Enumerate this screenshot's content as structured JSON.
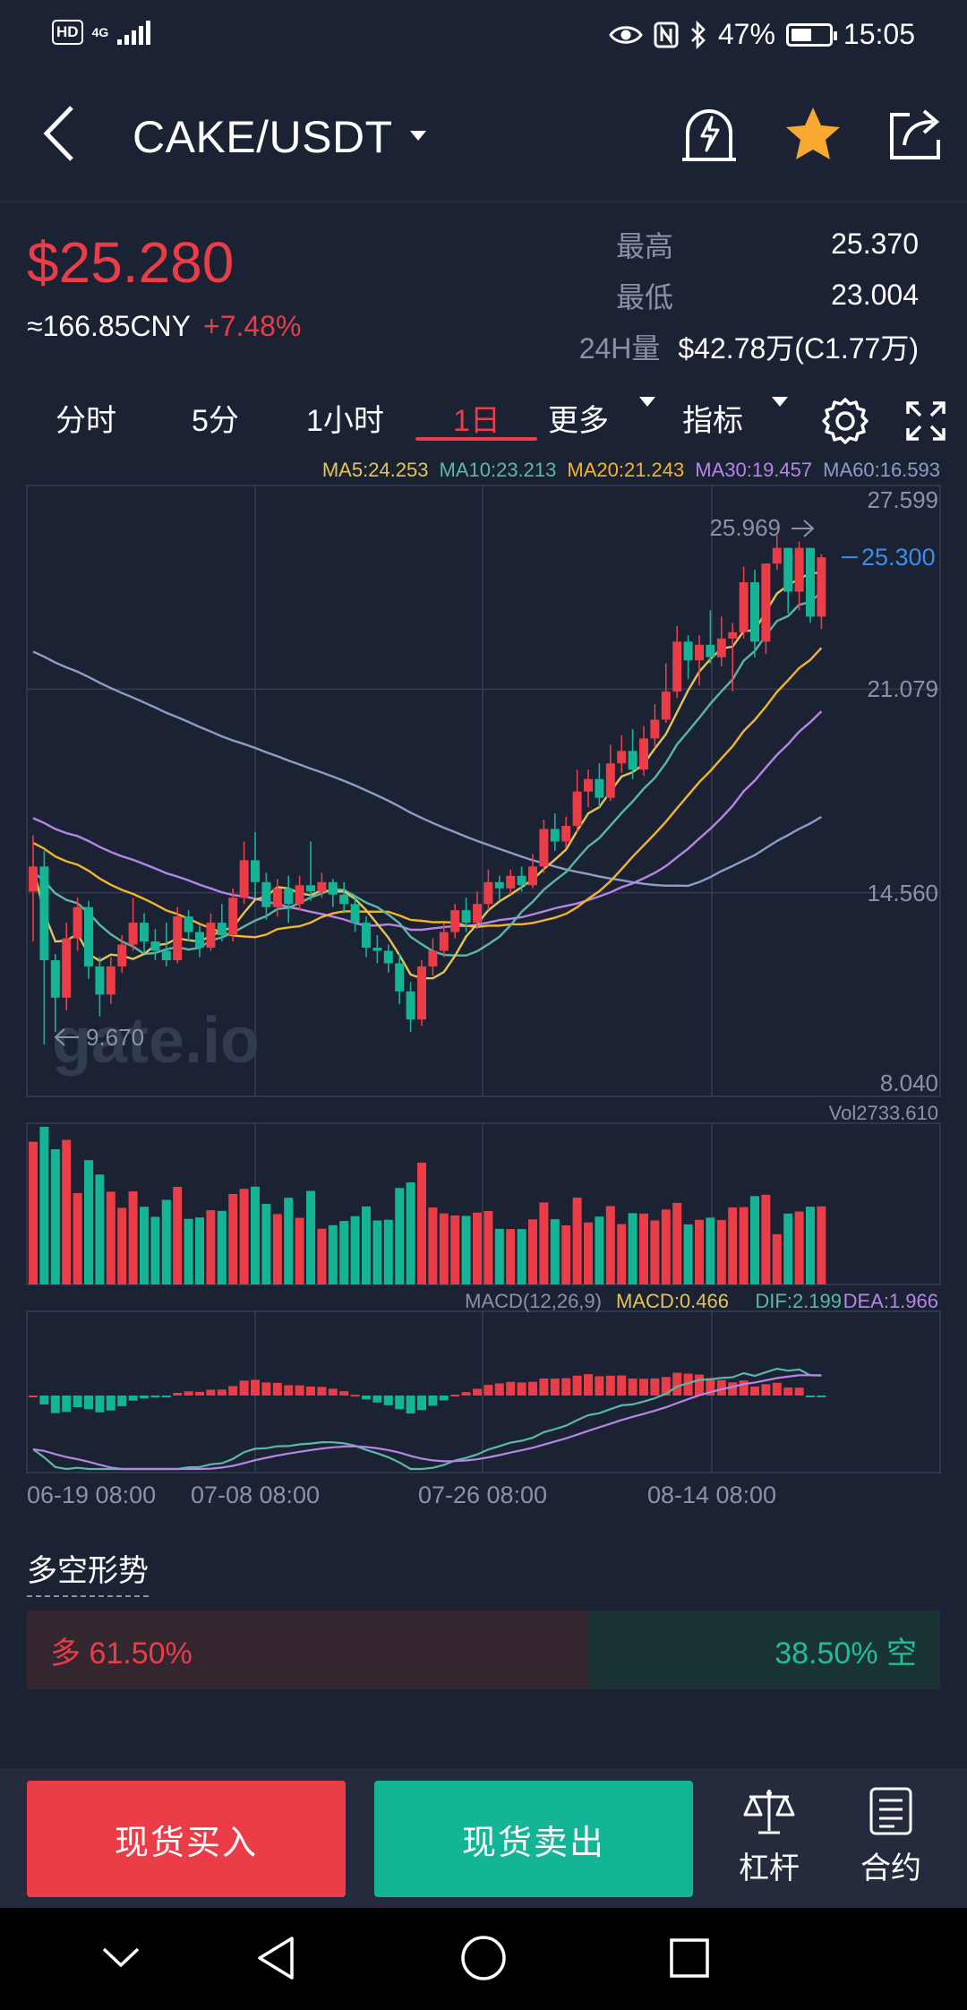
{
  "status_bar": {
    "hd": "HD",
    "network": "4G",
    "battery": "47%",
    "time": "15:05"
  },
  "header": {
    "pair": "CAKE/USDT"
  },
  "ticker": {
    "price": "$25.280",
    "cny": "≈166.85CNY",
    "change": "+7.48%",
    "high_label": "最高",
    "high": "25.370",
    "low_label": "最低",
    "low": "23.004",
    "vol_label": "24H量",
    "vol": "$42.78万(C1.77万)"
  },
  "tabs": [
    "分时",
    "5分",
    "1小时",
    "1日",
    "更多",
    "指标"
  ],
  "active_tab": "1日",
  "ma_legend": [
    {
      "text": "MA5:24.253",
      "color": "#e2c458"
    },
    {
      "text": "MA10:23.213",
      "color": "#5cb8a6"
    },
    {
      "text": "MA20:21.243",
      "color": "#f3b52c"
    },
    {
      "text": "MA30:19.457",
      "color": "#b785e6"
    },
    {
      "text": "MA60:16.593",
      "color": "#8f9cc8"
    }
  ],
  "chart_data": {
    "type": "candlestick",
    "y_axis_labels": [
      "27.599",
      "21.079",
      "14.560",
      "8.040"
    ],
    "ylim": [
      8.04,
      27.599
    ],
    "current_price_label": "25.300",
    "max_label": "25.969",
    "min_label": "9.670",
    "x_tick_labels": [
      "06-19 08:00",
      "07-08 08:00",
      "07-26 08:00",
      "08-14 08:00"
    ],
    "watermark": "gate.io",
    "candles": [
      [
        14.6,
        15.4,
        16.4,
        13.0
      ],
      [
        15.4,
        12.4,
        15.9,
        9.7
      ],
      [
        12.4,
        11.2,
        12.6,
        10.1
      ],
      [
        11.2,
        13.1,
        13.6,
        10.8
      ],
      [
        13.1,
        14.1,
        14.4,
        12.7
      ],
      [
        14.1,
        12.2,
        14.3,
        11.8
      ],
      [
        12.2,
        11.3,
        12.5,
        10.6
      ],
      [
        11.3,
        12.2,
        12.5,
        11.0
      ],
      [
        12.2,
        12.9,
        13.2,
        12.0
      ],
      [
        12.9,
        13.6,
        14.4,
        12.7
      ],
      [
        13.6,
        13.0,
        13.9,
        12.6
      ],
      [
        13.0,
        12.7,
        13.4,
        12.4
      ],
      [
        12.7,
        12.4,
        13.6,
        12.2
      ],
      [
        12.4,
        13.8,
        14.1,
        12.3
      ],
      [
        13.8,
        13.3,
        14.0,
        13.0
      ],
      [
        13.3,
        12.8,
        13.5,
        12.5
      ],
      [
        12.8,
        13.6,
        13.9,
        12.7
      ],
      [
        13.6,
        13.2,
        14.2,
        13.0
      ],
      [
        13.2,
        14.4,
        14.7,
        13.0
      ],
      [
        14.4,
        15.6,
        16.2,
        14.2
      ],
      [
        15.6,
        14.9,
        16.5,
        14.4
      ],
      [
        14.9,
        14.1,
        15.2,
        13.7
      ],
      [
        14.1,
        14.7,
        15.0,
        13.8
      ],
      [
        14.7,
        14.2,
        15.1,
        13.6
      ],
      [
        14.2,
        14.8,
        15.1,
        14.0
      ],
      [
        14.8,
        14.6,
        16.2,
        14.3
      ],
      [
        14.6,
        14.9,
        15.2,
        14.4
      ],
      [
        14.9,
        14.5,
        15.0,
        14.1
      ],
      [
        14.5,
        14.2,
        14.9,
        13.9
      ],
      [
        14.2,
        13.6,
        14.4,
        13.3
      ],
      [
        13.6,
        12.8,
        13.8,
        12.5
      ],
      [
        12.8,
        12.7,
        13.2,
        12.3
      ],
      [
        12.7,
        12.3,
        12.9,
        12.0
      ],
      [
        12.3,
        11.4,
        12.6,
        11.0
      ],
      [
        11.4,
        10.5,
        11.7,
        10.1
      ],
      [
        10.5,
        12.2,
        12.4,
        10.3
      ],
      [
        12.2,
        12.7,
        13.1,
        11.9
      ],
      [
        12.7,
        13.3,
        13.6,
        12.5
      ],
      [
        13.3,
        14.0,
        14.2,
        13.1
      ],
      [
        14.0,
        13.6,
        14.4,
        13.3
      ],
      [
        13.6,
        14.2,
        14.6,
        13.4
      ],
      [
        14.2,
        14.9,
        15.3,
        14.0
      ],
      [
        14.9,
        14.7,
        15.1,
        14.3
      ],
      [
        14.7,
        15.1,
        15.3,
        14.5
      ],
      [
        15.1,
        14.8,
        15.4,
        14.6
      ],
      [
        14.8,
        15.4,
        15.8,
        14.7
      ],
      [
        15.4,
        16.6,
        16.9,
        15.2
      ],
      [
        16.6,
        16.2,
        17.1,
        15.9
      ],
      [
        16.2,
        16.7,
        17.0,
        16.0
      ],
      [
        16.7,
        17.8,
        18.5,
        16.5
      ],
      [
        17.8,
        18.2,
        18.5,
        17.3
      ],
      [
        18.2,
        17.6,
        18.7,
        17.3
      ],
      [
        17.6,
        18.7,
        19.3,
        17.5
      ],
      [
        18.7,
        19.1,
        19.6,
        18.4
      ],
      [
        19.1,
        18.5,
        19.8,
        18.2
      ],
      [
        18.5,
        19.5,
        19.9,
        18.3
      ],
      [
        19.5,
        20.1,
        20.6,
        19.2
      ],
      [
        20.1,
        21.0,
        21.9,
        20.0
      ],
      [
        21.0,
        22.6,
        23.1,
        20.8
      ],
      [
        22.6,
        22.0,
        22.8,
        21.4
      ],
      [
        22.0,
        22.5,
        22.8,
        21.2
      ],
      [
        22.5,
        22.1,
        23.6,
        21.9
      ],
      [
        22.1,
        22.7,
        23.4,
        21.8
      ],
      [
        22.7,
        22.9,
        23.2,
        21.0
      ],
      [
        22.9,
        24.5,
        25.0,
        22.7
      ],
      [
        24.5,
        22.6,
        24.9,
        22.1
      ],
      [
        22.6,
        25.1,
        25.1,
        22.2
      ],
      [
        25.1,
        25.6,
        26.0,
        24.9
      ],
      [
        25.6,
        24.2,
        25.6,
        23.5
      ],
      [
        24.2,
        25.6,
        25.8,
        23.6
      ],
      [
        25.6,
        23.4,
        25.6,
        23.2
      ],
      [
        23.4,
        25.3,
        25.4,
        23.0
      ]
    ],
    "volume_label": "Vol2733.610",
    "macd_label": "MACD(12,26,9)",
    "macd_value": "MACD:0.466",
    "dif_value": "DIF:2.199",
    "dea_value": "DEA:1.966"
  },
  "long_short": {
    "title": "多空形势",
    "long_label": "多 61.50%",
    "short_label": "38.50% 空",
    "long_pct": 61.5
  },
  "actions": {
    "buy": "现货买入",
    "sell": "现货卖出",
    "leverage": "杠杆",
    "contract": "合约"
  }
}
